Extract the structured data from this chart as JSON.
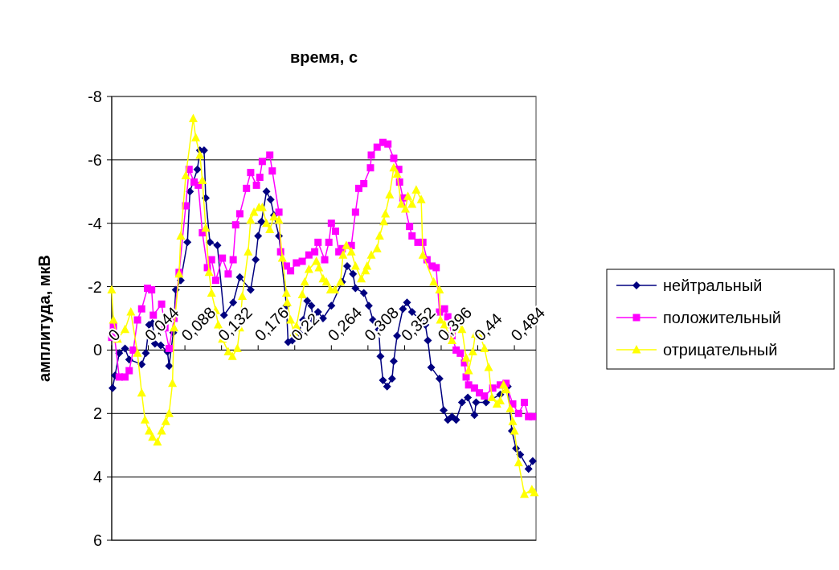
{
  "chart_data": {
    "type": "line",
    "title": "время, с",
    "ylabel": "амплитуда, мкВ",
    "xlim": [
      0,
      0.51
    ],
    "xticks": [
      0,
      {
        "value": 0.044,
        "label": "0,044"
      },
      {
        "value": 0.088,
        "label": "0,088"
      },
      {
        "value": 0.132,
        "label": "0,132"
      },
      {
        "value": 0.176,
        "label": "0,176"
      },
      {
        "value": 0.22,
        "label": "0,22"
      },
      {
        "value": 0.264,
        "label": "0,264"
      },
      {
        "value": 0.308,
        "label": "0,308"
      },
      {
        "value": 0.352,
        "label": "0,352"
      },
      {
        "value": 0.396,
        "label": "0,396"
      },
      {
        "value": 0.44,
        "label": "0,44"
      },
      {
        "value": 0.484,
        "label": "0,484"
      }
    ],
    "ylim": [
      6,
      -8
    ],
    "yticks": [
      -8,
      -6,
      -4,
      -2,
      0,
      2,
      4,
      6
    ],
    "grid": "y",
    "legend": "right",
    "series": [
      {
        "name": "нейтральный",
        "color": "#000080",
        "marker": "diamond",
        "x": [
          0.001,
          0.004,
          0.009,
          0.016,
          0.021,
          0.036,
          0.041,
          0.045,
          0.049,
          0.052,
          0.059,
          0.067,
          0.069,
          0.074,
          0.077,
          0.083,
          0.091,
          0.094,
          0.103,
          0.106,
          0.111,
          0.113,
          0.118,
          0.127,
          0.135,
          0.146,
          0.154,
          0.167,
          0.173,
          0.176,
          0.18,
          0.186,
          0.191,
          0.195,
          0.201,
          0.21,
          0.212,
          0.217,
          0.225,
          0.23,
          0.235,
          0.24,
          0.242,
          0.248,
          0.254,
          0.264,
          0.277,
          0.283,
          0.29,
          0.293,
          0.303,
          0.309,
          0.314,
          0.321,
          0.323,
          0.326,
          0.331,
          0.337,
          0.339,
          0.343,
          0.35,
          0.355,
          0.361,
          0.371,
          0.377,
          0.38,
          0.384,
          0.394,
          0.399,
          0.404,
          0.409,
          0.414,
          0.421,
          0.428,
          0.436,
          0.438,
          0.45,
          0.467,
          0.476,
          0.481,
          0.486,
          0.491,
          0.501,
          0.506
        ],
        "values": [
          1.2,
          0.8,
          0.1,
          -0.05,
          0.3,
          0.45,
          0.1,
          -0.8,
          -0.85,
          -0.2,
          -0.15,
          0.05,
          0.5,
          -0.55,
          -1.9,
          -2.2,
          -3.4,
          -5.0,
          -5.7,
          -6.3,
          -6.3,
          -4.8,
          -3.4,
          -3.3,
          -1.1,
          -1.5,
          -2.3,
          -1.9,
          -2.85,
          -3.6,
          -4.05,
          -5.0,
          -4.75,
          -4.25,
          -3.6,
          -1.4,
          -0.25,
          -0.3,
          -0.55,
          -0.95,
          -1.55,
          -1.4,
          -0.95,
          -1.2,
          -1.0,
          -1.4,
          -2.15,
          -2.65,
          -2.4,
          -1.95,
          -1.8,
          -1.4,
          -0.95,
          -0.65,
          0.2,
          0.95,
          1.15,
          0.9,
          0.35,
          -0.45,
          -1.3,
          -1.5,
          -1.2,
          -0.95,
          -0.8,
          -0.3,
          0.55,
          0.9,
          1.9,
          2.2,
          2.1,
          2.2,
          1.65,
          1.5,
          2.05,
          1.65,
          1.65,
          1.4,
          1.15,
          2.55,
          3.1,
          3.3,
          3.75,
          3.5
        ]
      },
      {
        "name": "положительный",
        "color": "#ff00ff",
        "marker": "square",
        "x": [
          0,
          0.002,
          0.009,
          0.016,
          0.021,
          0.026,
          0.031,
          0.036,
          0.043,
          0.048,
          0.05,
          0.06,
          0.064,
          0.069,
          0.075,
          0.081,
          0.089,
          0.093,
          0.099,
          0.104,
          0.109,
          0.115,
          0.12,
          0.125,
          0.133,
          0.14,
          0.146,
          0.149,
          0.154,
          0.162,
          0.167,
          0.174,
          0.178,
          0.181,
          0.19,
          0.193,
          0.201,
          0.203,
          0.21,
          0.215,
          0.222,
          0.229,
          0.237,
          0.244,
          0.248,
          0.256,
          0.261,
          0.264,
          0.269,
          0.273,
          0.277,
          0.288,
          0.293,
          0.297,
          0.303,
          0.311,
          0.312,
          0.319,
          0.326,
          0.332,
          0.339,
          0.345,
          0.346,
          0.35,
          0.358,
          0.361,
          0.368,
          0.374,
          0.379,
          0.385,
          0.39,
          0.394,
          0.4,
          0.404,
          0.409,
          0.414,
          0.419,
          0.424,
          0.426,
          0.429,
          0.436,
          0.442,
          0.448,
          0.458,
          0.467,
          0.474,
          0.482,
          0.489,
          0.496,
          0.501,
          0.506
        ],
        "values": [
          -0.4,
          -0.75,
          0.85,
          0.85,
          0.65,
          0,
          -0.95,
          -1.3,
          -1.95,
          -1.9,
          -1.1,
          -1.45,
          -0.7,
          -0.05,
          -1.0,
          -2.45,
          -4.55,
          -5.7,
          -5.3,
          -5.2,
          -3.7,
          -2.6,
          -2.85,
          -2.2,
          -2.9,
          -2.4,
          -2.85,
          -3.95,
          -4.3,
          -5.1,
          -5.6,
          -5.2,
          -5.45,
          -5.95,
          -6.15,
          -5.65,
          -4.35,
          -3.1,
          -2.65,
          -2.5,
          -2.75,
          -2.8,
          -3.0,
          -3.1,
          -3.4,
          -2.85,
          -3.4,
          -4.0,
          -3.75,
          -3.1,
          -3.2,
          -3.3,
          -4.35,
          -5.1,
          -5.25,
          -5.75,
          -6.15,
          -6.4,
          -6.55,
          -6.5,
          -6.05,
          -5.7,
          -5.3,
          -4.8,
          -3.9,
          -3.6,
          -3.4,
          -3.4,
          -2.85,
          -2.65,
          -2.6,
          -1.2,
          -1.3,
          -1.05,
          -0.45,
          0,
          0.1,
          0.4,
          0.85,
          1.1,
          1.2,
          1.35,
          1.45,
          1.2,
          1.1,
          1.05,
          1.7,
          2.0,
          1.65,
          2.1,
          2.1
        ]
      },
      {
        "name": "отрицательный",
        "color": "#ffff00",
        "marker": "triangle",
        "x": [
          0,
          0.002,
          0.007,
          0.016,
          0.023,
          0.031,
          0.036,
          0.04,
          0.045,
          0.049,
          0.055,
          0.06,
          0.065,
          0.069,
          0.073,
          0.075,
          0.081,
          0.083,
          0.089,
          0.098,
          0.101,
          0.106,
          0.109,
          0.113,
          0.117,
          0.12,
          0.125,
          0.128,
          0.133,
          0.14,
          0.145,
          0.151,
          0.154,
          0.157,
          0.164,
          0.167,
          0.171,
          0.177,
          0.181,
          0.186,
          0.19,
          0.195,
          0.201,
          0.205,
          0.21,
          0.211,
          0.215,
          0.219,
          0.222,
          0.229,
          0.232,
          0.237,
          0.246,
          0.249,
          0.254,
          0.258,
          0.263,
          0.268,
          0.275,
          0.278,
          0.282,
          0.288,
          0.293,
          0.3,
          0.305,
          0.307,
          0.312,
          0.319,
          0.322,
          0.327,
          0.329,
          0.334,
          0.339,
          0.343,
          0.348,
          0.353,
          0.356,
          0.361,
          0.366,
          0.372,
          0.374,
          0.387,
          0.394,
          0.395,
          0.4,
          0.409,
          0.416,
          0.421,
          0.426,
          0.429,
          0.434,
          0.437,
          0.443,
          0.448,
          0.453,
          0.457,
          0.463,
          0.467,
          0.471,
          0.474,
          0.479,
          0.482,
          0.484,
          0.489,
          0.496,
          0.505,
          0.508
        ],
        "values": [
          -1.9,
          -0.95,
          -0.35,
          -0.65,
          -1.2,
          0.1,
          1.35,
          2.2,
          2.55,
          2.75,
          2.9,
          2.55,
          2.25,
          2.0,
          1.05,
          -0.7,
          -2.4,
          -3.6,
          -5.5,
          -7.3,
          -6.7,
          -6.15,
          -5.35,
          -3.85,
          -2.45,
          -1.8,
          -1.25,
          -0.8,
          -0.35,
          0.05,
          0.2,
          -0.05,
          -0.7,
          -1.7,
          -3.1,
          -4.1,
          -4.35,
          -4.5,
          -4.5,
          -4.0,
          -3.8,
          -4.2,
          -4.1,
          -2.9,
          -1.8,
          -1.5,
          -0.95,
          -0.55,
          -0.75,
          -1.75,
          -2.15,
          -2.55,
          -2.8,
          -2.6,
          -2.25,
          -2.15,
          -1.9,
          -1.9,
          -2.15,
          -3.0,
          -3.3,
          -3.1,
          -2.65,
          -2.25,
          -2.5,
          -2.65,
          -3.0,
          -3.2,
          -3.6,
          -4.05,
          -4.3,
          -4.9,
          -5.75,
          -5.55,
          -4.6,
          -4.45,
          -4.85,
          -4.6,
          -5.05,
          -4.75,
          -3.0,
          -2.15,
          -1.9,
          -0.95,
          -0.8,
          -0.3,
          -0.9,
          -0.65,
          0.25,
          0.65,
          0.05,
          -0.5,
          -0.45,
          -0.05,
          0.55,
          1.5,
          1.7,
          1.6,
          1.1,
          1.25,
          1.85,
          2.25,
          2.55,
          3.55,
          4.55,
          4.4,
          4.5
        ]
      }
    ]
  }
}
